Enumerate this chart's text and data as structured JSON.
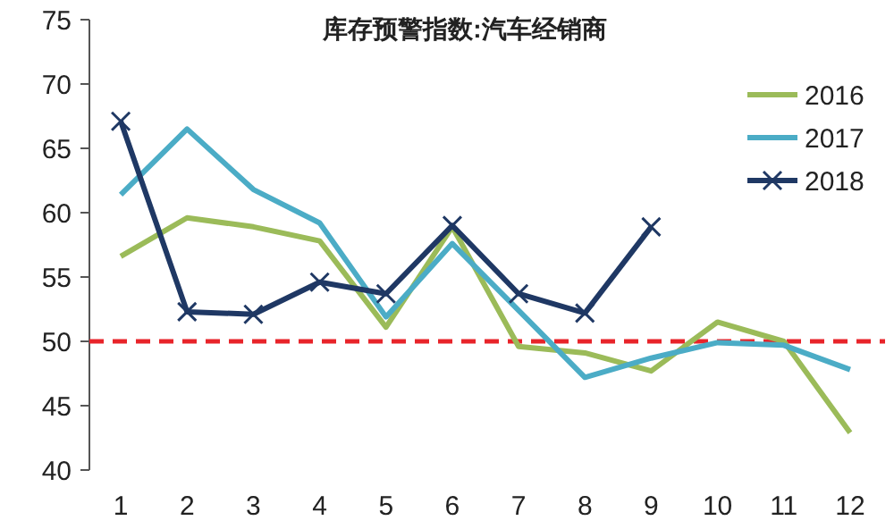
{
  "chart_data": {
    "type": "line",
    "title": "库存预警指数:汽车经销商",
    "x": [
      1,
      2,
      3,
      4,
      5,
      6,
      7,
      8,
      9,
      10,
      11,
      12
    ],
    "xlim": [
      0.5,
      12.5
    ],
    "xticks": [
      1,
      2,
      3,
      4,
      5,
      6,
      7,
      8,
      9,
      10,
      11,
      12
    ],
    "series": [
      {
        "name": "2016",
        "color": "#9bbb59",
        "values": [
          56.6,
          59.6,
          58.9,
          57.8,
          51.1,
          58.9,
          49.6,
          49.1,
          47.7,
          51.5,
          50.0,
          42.9
        ],
        "marker": "none"
      },
      {
        "name": "2017",
        "color": "#4bacc6",
        "values": [
          61.4,
          66.5,
          61.8,
          59.2,
          51.9,
          57.6,
          52.4,
          47.2,
          48.7,
          49.9,
          49.7,
          47.8
        ],
        "marker": "none"
      },
      {
        "name": "2018",
        "color": "#1f3864",
        "values": [
          67.1,
          52.3,
          52.1,
          54.6,
          53.7,
          59.0,
          53.7,
          52.2,
          58.9,
          null,
          null,
          null
        ],
        "marker": "cross"
      }
    ],
    "ylim": [
      40,
      75
    ],
    "yticks": [
      40,
      45,
      50,
      55,
      60,
      65,
      70,
      75
    ],
    "grid": false,
    "legend": "top right",
    "ref_lines": [
      {
        "axis": "y",
        "value": 50,
        "color": "#e8242a",
        "line_style": "dashed"
      }
    ]
  }
}
